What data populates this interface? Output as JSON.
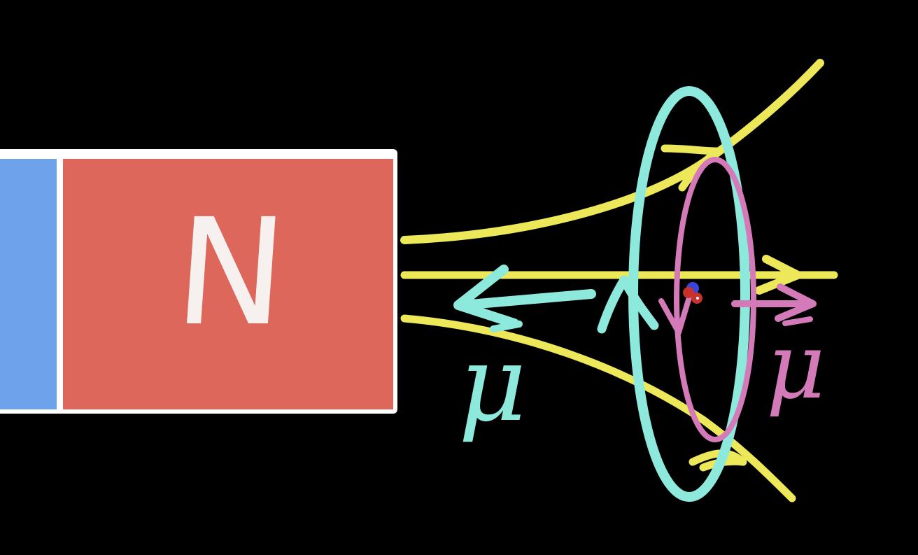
{
  "magnet": {
    "north_label": "N",
    "colors": {
      "south_pole": "#6ea2ea",
      "north_pole": "#dd675b",
      "frame": "#ffffff"
    }
  },
  "field_lines": {
    "color": "#ece85a"
  },
  "current_loop_outer": {
    "color": "#8ce9dc",
    "moment_label": "μ"
  },
  "current_loop_inner": {
    "color": "#d57ab8",
    "moment_label": "μ"
  }
}
